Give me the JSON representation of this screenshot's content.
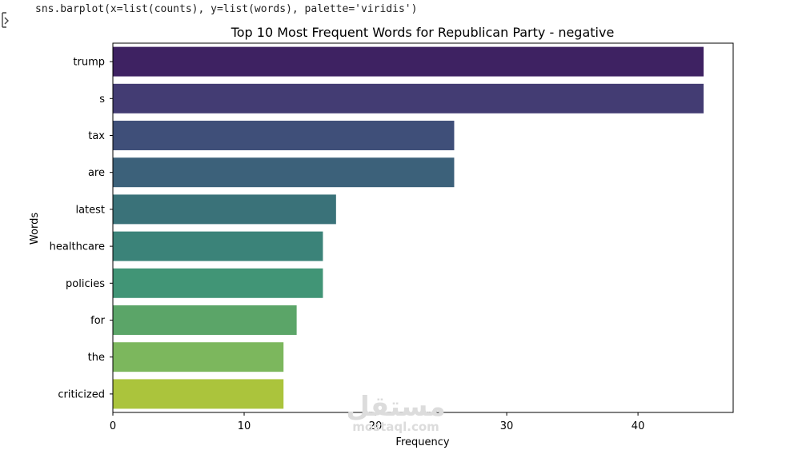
{
  "code": {
    "line": "sns.barplot(x=list(counts), y=list(words), palette='viridis')",
    "icon": "output-toggle-icon"
  },
  "watermark": {
    "main": "مستقل",
    "sub": "mostaql.com"
  },
  "chart_data": {
    "type": "bar",
    "orientation": "horizontal",
    "title": "Top 10 Most Frequent Words for Republican Party - negative",
    "xlabel": "Frequency",
    "ylabel": "Words",
    "categories": [
      "trump",
      "s",
      "tax",
      "are",
      "latest",
      "healthcare",
      "policies",
      "for",
      "the",
      "criticized"
    ],
    "values": [
      45,
      45,
      26,
      26,
      17,
      16,
      16,
      14,
      13,
      13
    ],
    "xlim": [
      0,
      47.25
    ],
    "xticks": [
      0,
      10,
      20,
      30,
      40
    ],
    "grid": false,
    "palette": "viridis",
    "colors": [
      "#3e2262",
      "#433c73",
      "#3f4f79",
      "#3c617a",
      "#3a7279",
      "#3b8379",
      "#419576",
      "#5ba568",
      "#7cb75d",
      "#abc43c"
    ]
  }
}
